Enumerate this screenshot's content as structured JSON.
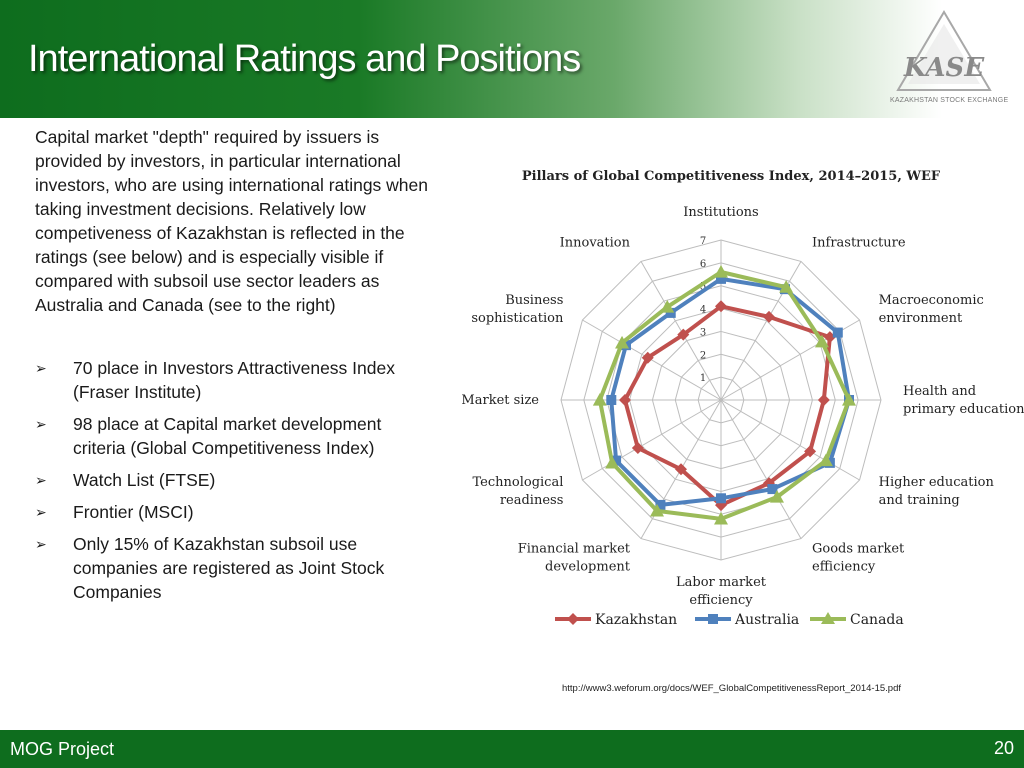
{
  "slide": {
    "title": "International Ratings and Positions",
    "intro": "Capital market \"depth\" required by issuers is provided by investors, in particular international investors, who are using international ratings when taking investment decisions. Relatively low competiveness of Kazakhstan is reflected in the ratings (see below) and is especially visible if compared with subsoil use sector leaders as Australia and Canada (see to the right)",
    "bullets": [
      "70 place in Investors Attractiveness Index (Fraser Institute)",
      "98 place at Capital market development criteria (Global Competitiveness Index)",
      "Watch List (FTSE)",
      "Frontier (MSCI)",
      "Only 15% of Kazakhstan subsoil use companies are registered as Joint Stock Companies"
    ],
    "source": "http://www3.weforum.org/docs/WEF_GlobalCompetitivenessReport_2014-15.pdf",
    "footer_left": "MOG Project",
    "page_number": "20",
    "logo": {
      "text": "KASE",
      "subtext": "KAZAKHSTAN STOCK EXCHANGE"
    }
  },
  "chart_data": {
    "type": "radar",
    "title": "Pillars of Global Competitiveness Index, 2014–2015, WEF",
    "axes": [
      "Institutions",
      "Infrastructure",
      "Macroeconomic environment",
      "Health and primary education",
      "Higher education and training",
      "Goods market efficiency",
      "Labor market efficiency",
      "Financial market development",
      "Technological readiness",
      "Market size",
      "Business sophistication",
      "Innovation"
    ],
    "ticks": [
      1,
      2,
      3,
      4,
      5,
      6,
      7
    ],
    "range": [
      0,
      7
    ],
    "series": [
      {
        "name": "Kazakhstan",
        "color": "#c0504d",
        "marker": "diamond",
        "values": [
          4.1,
          4.2,
          5.5,
          4.5,
          4.5,
          4.2,
          4.6,
          3.5,
          4.2,
          4.2,
          3.7,
          3.3
        ]
      },
      {
        "name": "Australia",
        "color": "#4f81bd",
        "marker": "square",
        "values": [
          5.3,
          5.6,
          5.9,
          5.6,
          5.5,
          4.5,
          4.3,
          5.3,
          5.3,
          4.8,
          4.8,
          4.4
        ]
      },
      {
        "name": "Canada",
        "color": "#9bbb59",
        "marker": "triangle",
        "values": [
          5.6,
          5.7,
          5.1,
          5.6,
          5.3,
          4.9,
          5.2,
          5.6,
          5.5,
          5.3,
          5.0,
          4.7
        ]
      }
    ],
    "legend": "bottom",
    "grid": true
  }
}
